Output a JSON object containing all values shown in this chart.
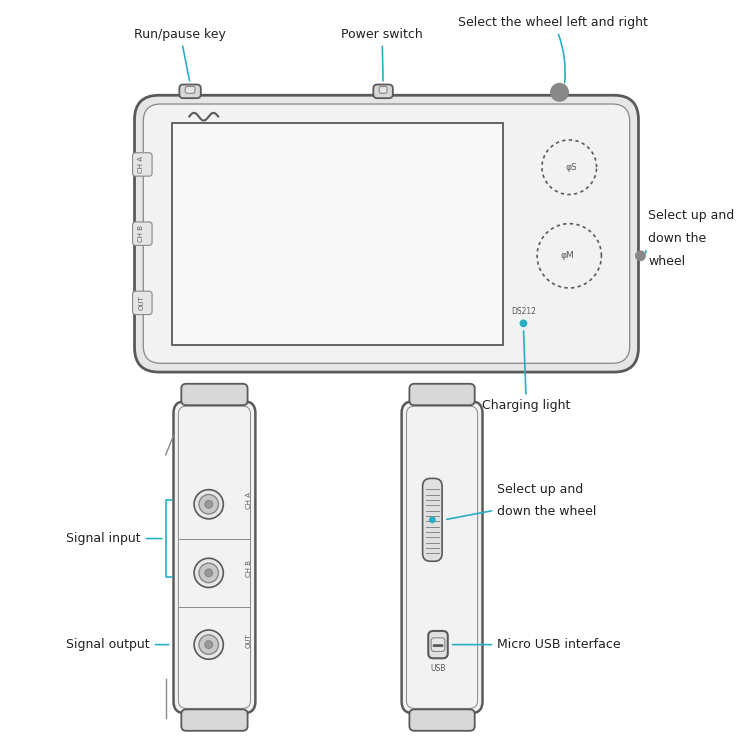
{
  "bg_color": "#ffffff",
  "line_color": "#5a5a5a",
  "line_color2": "#888888",
  "annotation_color": "#29aec3",
  "text_color": "#222222",
  "device_fc": "#f2f2f2",
  "device_fc2": "#e6e6e6",
  "screen_fc": "#f8f8f8",
  "connector_fc1": "#e8e8e8",
  "connector_fc2": "#c8c8c8",
  "connector_fc3": "#999999",
  "cap_fc": "#d8d8d8",
  "wheel_fc": "#e0e0e0",
  "annotations": {
    "run_pause": "Run/pause key",
    "power_switch": "Power switch",
    "select_lr": "Select the wheel left and right",
    "select_ud_top": "Select up and\ndown the\nwheel",
    "charging_light": "Charging light",
    "signal_input": "Signal input",
    "signal_output": "Signal output",
    "select_ud_side": "Select up and\ndown the wheel",
    "micro_usb": "Micro USB interface"
  },
  "labels": {
    "ch_a": "CH A",
    "ch_b": "CH B",
    "out": "OUT",
    "ds212": "DS212",
    "usb": "USB"
  },
  "ann_fontsize": 9,
  "label_fontsize": 5
}
